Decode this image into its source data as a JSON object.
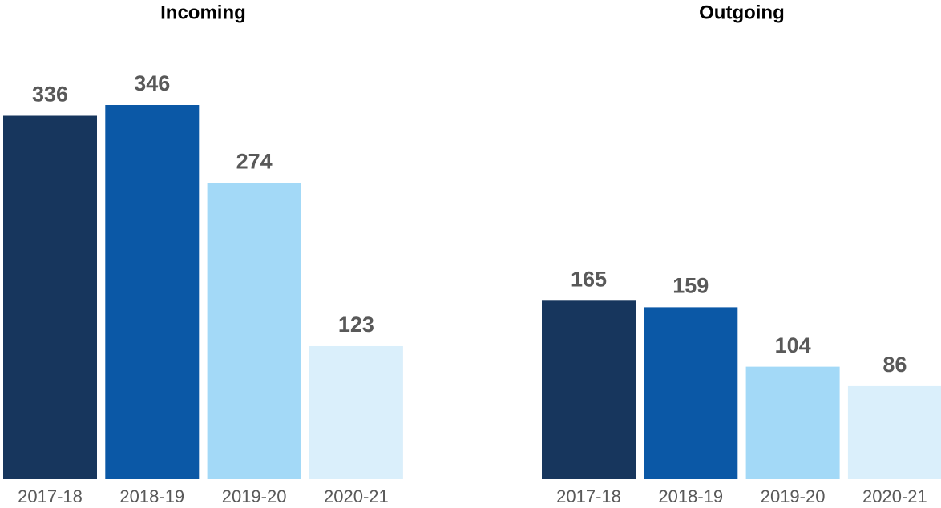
{
  "chart_data": [
    {
      "type": "bar",
      "title": "Incoming",
      "categories": [
        "2017-18",
        "2018-19",
        "2019-20",
        "2020-21"
      ],
      "values": [
        336,
        346,
        274,
        123
      ],
      "colors": [
        "#17365d",
        "#0b58a6",
        "#a3d9f7",
        "#daeffb"
      ]
    },
    {
      "type": "bar",
      "title": "Outgoing",
      "categories": [
        "2017-18",
        "2018-19",
        "2019-20",
        "2020-21"
      ],
      "values": [
        165,
        159,
        104,
        86
      ],
      "colors": [
        "#17365d",
        "#0b58a6",
        "#a3d9f7",
        "#daeffb"
      ]
    }
  ]
}
